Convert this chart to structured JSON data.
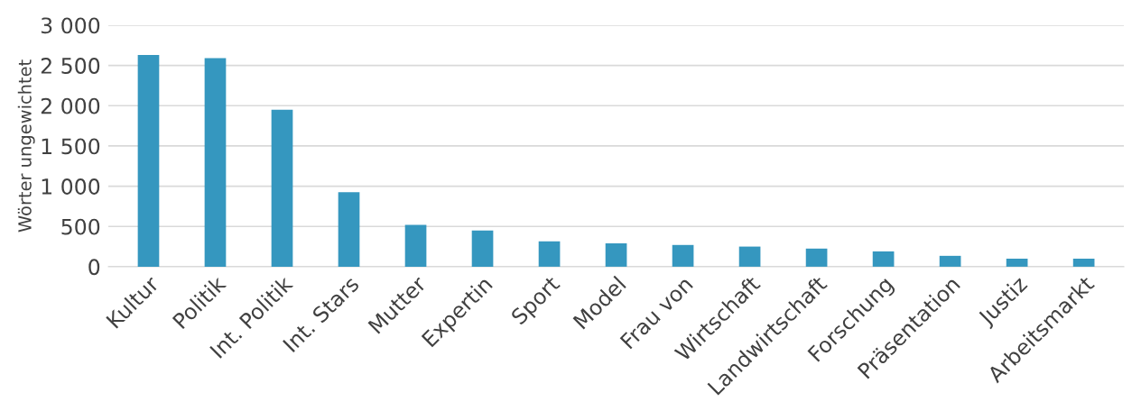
{
  "chart_data": {
    "type": "bar",
    "ylabel": "Wörter ungewichtet",
    "categories": [
      "Kultur",
      "Politik",
      "Int. Politik",
      "Int. Stars",
      "Mutter",
      "Expertin",
      "Sport",
      "Model",
      "Frau von",
      "Wirtschaft",
      "Landwirtschaft",
      "Forschung",
      "Präsentation",
      "Justiz",
      "Arbeitsmarkt"
    ],
    "values": [
      2630,
      2590,
      1950,
      925,
      520,
      450,
      315,
      290,
      270,
      250,
      225,
      190,
      135,
      100,
      100
    ],
    "color": "#3597bf",
    "ylim": [
      0,
      3000
    ],
    "yticks": [
      0,
      500,
      {
        "value": 1000,
        "label": "1 000"
      },
      {
        "value": 1500,
        "label": "1 500"
      },
      {
        "value": 2000,
        "label": "2 000"
      },
      {
        "value": 2500,
        "label": "2 500"
      },
      {
        "value": 3000,
        "label": "3 000"
      }
    ],
    "grid": "y",
    "legend": false
  }
}
